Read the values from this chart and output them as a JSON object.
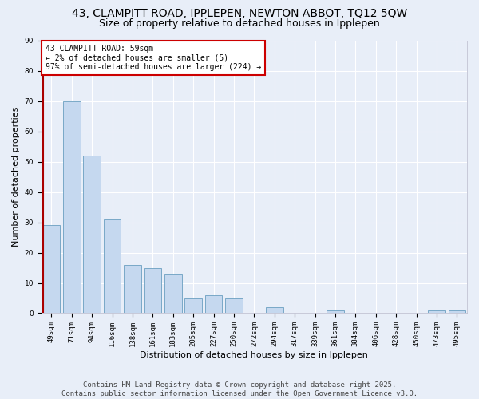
{
  "title1": "43, CLAMPITT ROAD, IPPLEPEN, NEWTON ABBOT, TQ12 5QW",
  "title2": "Size of property relative to detached houses in Ipplepen",
  "xlabel": "Distribution of detached houses by size in Ipplepen",
  "ylabel": "Number of detached properties",
  "categories": [
    "49sqm",
    "71sqm",
    "94sqm",
    "116sqm",
    "138sqm",
    "161sqm",
    "183sqm",
    "205sqm",
    "227sqm",
    "250sqm",
    "272sqm",
    "294sqm",
    "317sqm",
    "339sqm",
    "361sqm",
    "384sqm",
    "406sqm",
    "428sqm",
    "450sqm",
    "473sqm",
    "495sqm"
  ],
  "values": [
    29,
    70,
    52,
    31,
    16,
    15,
    13,
    5,
    6,
    5,
    0,
    2,
    0,
    0,
    1,
    0,
    0,
    0,
    0,
    1,
    1
  ],
  "bar_color": "#c5d8ef",
  "bar_edge_color": "#6a9fc0",
  "highlight_color": "#aa0000",
  "annotation_text": "43 CLAMPITT ROAD: 59sqm\n← 2% of detached houses are smaller (5)\n97% of semi-detached houses are larger (224) →",
  "annotation_box_color": "#ffffff",
  "annotation_box_edge_color": "#cc0000",
  "ylim": [
    0,
    90
  ],
  "yticks": [
    0,
    10,
    20,
    30,
    40,
    50,
    60,
    70,
    80,
    90
  ],
  "background_color": "#e8eef8",
  "grid_color": "#ffffff",
  "footnote": "Contains HM Land Registry data © Crown copyright and database right 2025.\nContains public sector information licensed under the Open Government Licence v3.0.",
  "title1_fontsize": 10,
  "title2_fontsize": 9,
  "xlabel_fontsize": 8,
  "ylabel_fontsize": 8,
  "tick_fontsize": 6.5,
  "annotation_fontsize": 7,
  "footnote_fontsize": 6.5
}
